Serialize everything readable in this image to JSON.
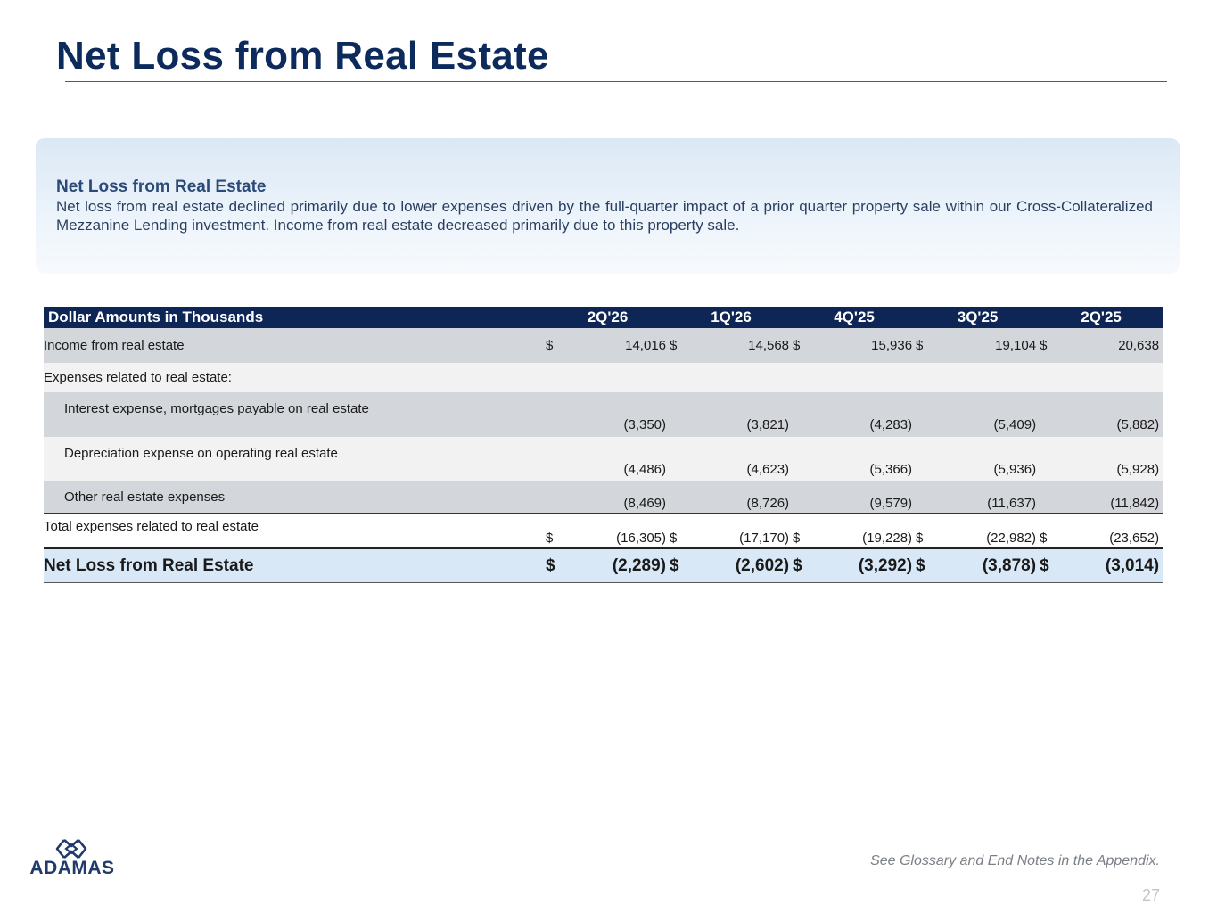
{
  "slide": {
    "title": "Net Loss from Real Estate",
    "footnote": "See Glossary and End Notes in the Appendix.",
    "page_number": "27"
  },
  "callout": {
    "heading": "Net Loss from Real Estate",
    "body": "Net loss from real estate declined primarily due to lower expenses driven by the full-quarter impact of a prior quarter property sale within our Cross-Collateralized Mezzanine Lending investment. Income from real estate decreased primarily due to this property sale."
  },
  "logo": {
    "text": "ADAMAS",
    "icon": "adamas-diamond-logo-icon",
    "color": "#1f3a6b"
  },
  "table": {
    "header": "Dollar Amounts in Thousands",
    "periods": [
      "2Q'26",
      "1Q'26",
      "4Q'25",
      "3Q'25",
      "2Q'25"
    ],
    "currency_symbol": "$",
    "rows": {
      "income": {
        "label": "Income from real estate",
        "values": [
          "14,016",
          "14,568",
          "15,936",
          "19,104",
          "20,638"
        ]
      },
      "expenses_heading": {
        "label": "Expenses related to real estate:"
      },
      "interest": {
        "label": "Interest expense, mortgages payable on real estate",
        "values": [
          "(3,350)",
          "(3,821)",
          "(4,283)",
          "(5,409)",
          "(5,882)"
        ]
      },
      "depreciation": {
        "label": "Depreciation expense on operating real estate",
        "values": [
          "(4,486)",
          "(4,623)",
          "(5,366)",
          "(5,936)",
          "(5,928)"
        ]
      },
      "other": {
        "label": "Other real estate expenses",
        "values": [
          "(8,469)",
          "(8,726)",
          "(9,579)",
          "(11,637)",
          "(11,842)"
        ]
      },
      "total_expenses": {
        "label": "Total expenses related to real estate",
        "values": [
          "(16,305)",
          "(17,170)",
          "(19,228)",
          "(22,982)",
          "(23,652)"
        ]
      },
      "net_loss": {
        "label": "Net Loss from Real Estate",
        "values": [
          "(2,289)",
          "(2,602)",
          "(3,292)",
          "(3,878)",
          "(3,014)"
        ]
      }
    }
  },
  "colors": {
    "title": "#0c2a5c",
    "header_bg": "#0e2656",
    "net_row_bg": "#d8e8f7",
    "callout_bg": "#dbe8f5"
  }
}
